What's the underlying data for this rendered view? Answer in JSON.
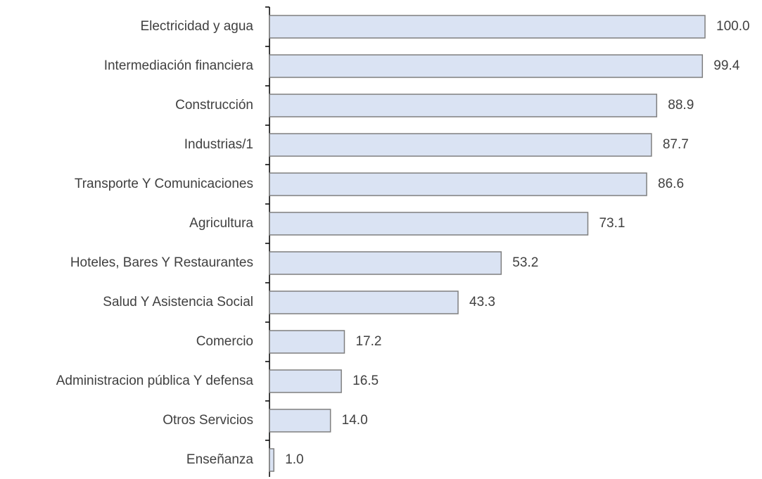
{
  "chart_data": {
    "type": "bar",
    "orientation": "horizontal",
    "categories": [
      "Electricidad y agua",
      "Intermediación financiera",
      "Construcción",
      "Industrias/1",
      "Transporte Y Comunicaciones",
      "Agricultura",
      "Hoteles, Bares Y Restaurantes",
      "Salud Y Asistencia Social",
      "Comercio",
      "Administracion pública Y defensa",
      "Otros Servicios",
      "Enseñanza"
    ],
    "values": [
      100,
      99.4,
      88.9,
      87.7,
      86.6,
      73.1,
      53.2,
      43.3,
      17.2,
      16.5,
      14,
      1
    ],
    "value_labels": [
      "100.0",
      "99.4",
      "88.9",
      "87.7",
      "86.6",
      "73.1",
      "53.2",
      "43.3",
      "17.2",
      "16.5",
      "14.0",
      "1.0"
    ],
    "color": "#dae3f3",
    "edgecolor": "#7f7f7f"
  }
}
